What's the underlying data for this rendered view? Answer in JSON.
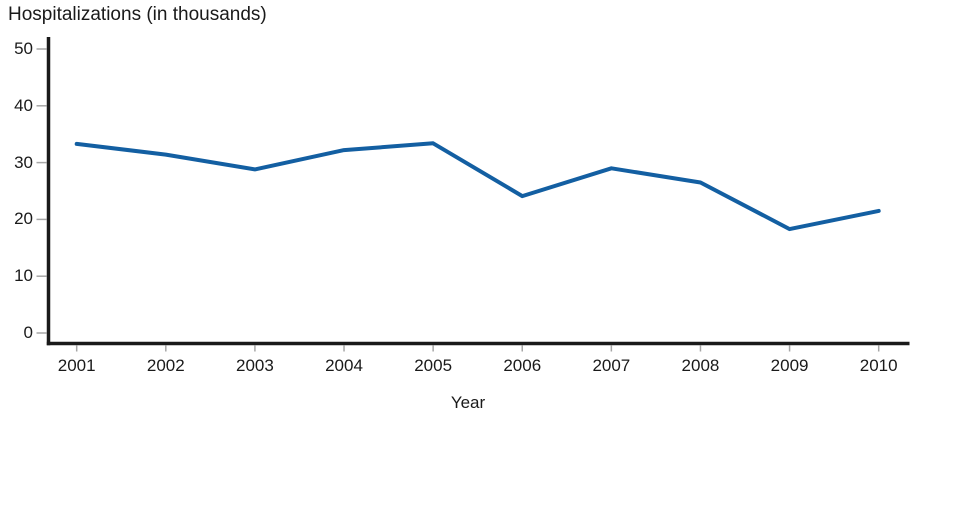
{
  "page": {
    "background": "#ffffff",
    "text_color": "#1a1a1a"
  },
  "chart_data": {
    "type": "line",
    "title": "Hospitalizations (in thousands)",
    "xlabel": "Year",
    "ylabel": "",
    "categories": [
      "2001",
      "2002",
      "2003",
      "2004",
      "2005",
      "2006",
      "2007",
      "2008",
      "2009",
      "2010"
    ],
    "series": [
      {
        "name": "Hospitalizations (in thousands)",
        "values": [
          33.3,
          31.4,
          28.8,
          32.2,
          33.4,
          24.1,
          29.0,
          26.5,
          18.3,
          21.5
        ],
        "color": "#135fa2"
      }
    ],
    "y_ticks": [
      0,
      10,
      20,
      30,
      40,
      50
    ],
    "y_tick_labels": [
      "0",
      "10",
      "20",
      "30",
      "40",
      "50"
    ],
    "ylim": [
      0,
      50
    ],
    "grid": false,
    "legend": "none",
    "axis_color": "#1a1a1a",
    "tick_mark_color": "#a6a6a6"
  }
}
